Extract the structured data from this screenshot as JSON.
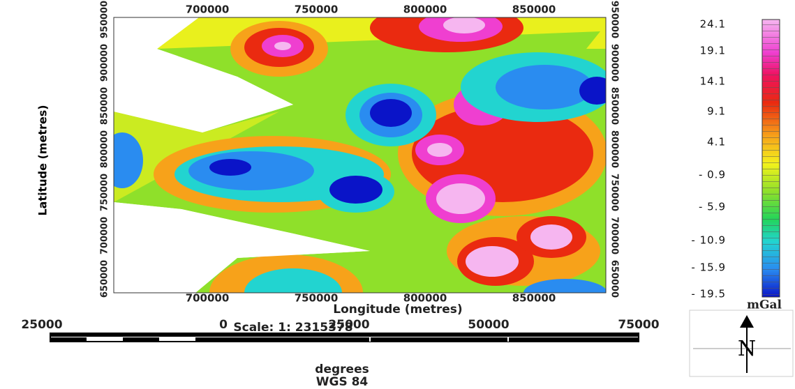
{
  "map": {
    "x_axis": {
      "title": "Longitude (metres)",
      "ticks": [
        "700000",
        "750000",
        "800000",
        "850000"
      ]
    },
    "y_axis": {
      "title": "Latitude (metres)",
      "ticks": [
        "650000",
        "700000",
        "750000",
        "800000",
        "850000",
        "900000",
        "950000"
      ]
    },
    "colorbar": {
      "unit": "mGal",
      "labels": [
        "24.1",
        "19.1",
        "14.1",
        "9.1",
        "4.1",
        "- 0.9",
        "- 5.9",
        "- 10.9",
        "- 15.9",
        "- 19.5"
      ]
    },
    "scale": {
      "title": "Scale: 1: 2315378",
      "labels": [
        "25000",
        "0",
        "25000",
        "50000",
        "75000"
      ],
      "unit": "degrees",
      "datum": "WGS 84"
    },
    "north": "N"
  }
}
